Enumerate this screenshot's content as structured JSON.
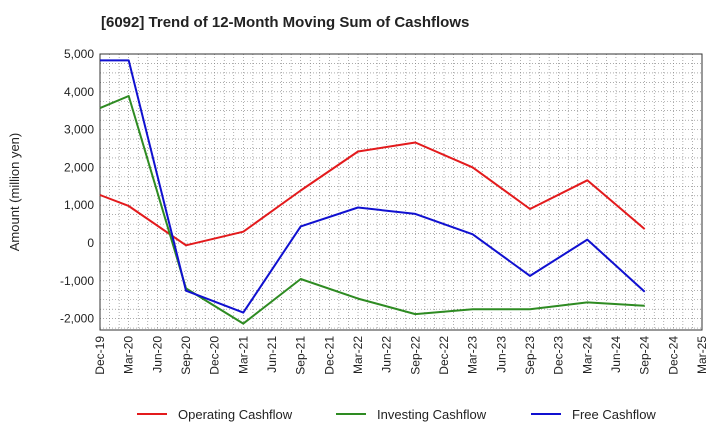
{
  "chart_data": {
    "type": "line",
    "title": "[6092]  Trend of 12-Month Moving Sum of Cashflows",
    "xlabel": "",
    "ylabel": "Amount (million yen)",
    "ylim": [
      -2300,
      5000
    ],
    "yticks": [
      5000,
      4000,
      3000,
      2000,
      1000,
      0,
      -1000,
      -2000
    ],
    "ytick_labels": [
      "5,000",
      "4,000",
      "3,000",
      "2,000",
      "1,000",
      "0",
      "-1,000",
      "-2,000"
    ],
    "categories": [
      "Dec-19",
      "Mar-20",
      "Jun-20",
      "Sep-20",
      "Dec-20",
      "Mar-21",
      "Jun-21",
      "Sep-21",
      "Dec-21",
      "Mar-22",
      "Jun-22",
      "Sep-22",
      "Dec-22",
      "Mar-23",
      "Jun-23",
      "Sep-23",
      "Dec-23",
      "Mar-24",
      "Jun-24",
      "Sep-24",
      "Dec-24",
      "Mar-25"
    ],
    "grid": true,
    "legend_position": "bottom",
    "series": [
      {
        "name": "Operating Cashflow",
        "color": "#e31a1c",
        "points": [
          [
            "Dec-19",
            1270
          ],
          [
            "Mar-20",
            980
          ],
          [
            "Sep-20",
            -60
          ],
          [
            "Mar-21",
            300
          ],
          [
            "Sep-21",
            1390
          ],
          [
            "Mar-22",
            2420
          ],
          [
            "Sep-22",
            2660
          ],
          [
            "Mar-23",
            2000
          ],
          [
            "Sep-23",
            900
          ],
          [
            "Mar-24",
            1660
          ],
          [
            "Sep-24",
            370
          ]
        ]
      },
      {
        "name": "Investing Cashflow",
        "color": "#2e8b22",
        "points": [
          [
            "Dec-19",
            3570
          ],
          [
            "Mar-20",
            3890
          ],
          [
            "Sep-20",
            -1200
          ],
          [
            "Mar-21",
            -2130
          ],
          [
            "Sep-21",
            -950
          ],
          [
            "Mar-22",
            -1470
          ],
          [
            "Sep-22",
            -1880
          ],
          [
            "Mar-23",
            -1750
          ],
          [
            "Sep-23",
            -1750
          ],
          [
            "Mar-24",
            -1570
          ],
          [
            "Sep-24",
            -1660
          ]
        ]
      },
      {
        "name": "Free Cashflow",
        "color": "#1010d0",
        "points": [
          [
            "Dec-19",
            4830
          ],
          [
            "Mar-20",
            4830
          ],
          [
            "Sep-20",
            -1260
          ],
          [
            "Mar-21",
            -1840
          ],
          [
            "Sep-21",
            440
          ],
          [
            "Mar-22",
            940
          ],
          [
            "Sep-22",
            770
          ],
          [
            "Mar-23",
            230
          ],
          [
            "Sep-23",
            -870
          ],
          [
            "Mar-24",
            90
          ],
          [
            "Sep-24",
            -1290
          ]
        ]
      }
    ]
  }
}
